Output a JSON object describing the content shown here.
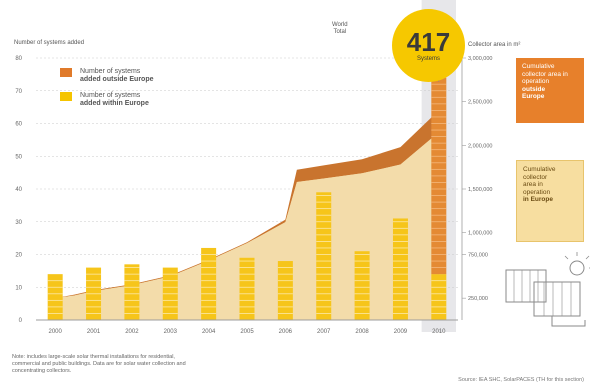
{
  "titles": {
    "left_axis": "Number of systems added",
    "right_axis": "Collector area in m²"
  },
  "legend": {
    "outside": {
      "line1": "Number of systems",
      "line2": "added outside Europe",
      "color": "#e07a2a"
    },
    "within": {
      "line1": "Number of systems",
      "line2": "added within Europe",
      "color": "#f5c400"
    }
  },
  "callouts": {
    "outside": {
      "line1": "Cumulative",
      "line2": "collector area in",
      "line3": "operation",
      "bold": "outside",
      "last": "Europe"
    },
    "europe": {
      "line1": "Cumulative",
      "line2": "collector",
      "line3": "area in",
      "line4": "operation",
      "bold": "in Europe"
    }
  },
  "world_total": {
    "line1": "World",
    "line2": "Total",
    "value": "417",
    "unit": "Systems"
  },
  "note": {
    "line1": "Note: includes large-scale solar thermal installations for residential,",
    "line2": "commercial and public buildings. Data are for solar water collection and",
    "line3": "concentrating collectors."
  },
  "source": "Source: IEA SHC, SolarPACES (TH for this section)",
  "colors": {
    "outside_bar": "#e48a34",
    "within_bar": "#f6c51a",
    "stripe": "#fde9a6",
    "area_europe": "#f3dcaa",
    "area_outside": "#c9742e",
    "highlight": "#e7e7ea",
    "axis": "#9c9c9c",
    "dash": "#c9c9c9"
  },
  "chart_data": {
    "type": "bar",
    "categories": [
      "2000",
      "2001",
      "2002",
      "2003",
      "2004",
      "2005",
      "2006",
      "2007",
      "2008",
      "2009",
      "2010"
    ],
    "y_ticks": [
      "0",
      "10",
      "20",
      "30",
      "40",
      "50",
      "60",
      "70",
      "80"
    ],
    "ylim": [
      0,
      80
    ],
    "y2_ticks": [
      "250,000",
      "750,000",
      "1,000,000",
      "1,500,000",
      "2,000,000",
      "2,500,000",
      "3,000,000"
    ],
    "y2lim": [
      0,
      3000000
    ],
    "series": [
      {
        "name": "Number of systems added outside Europe",
        "values": [
          0,
          0,
          0,
          0,
          0,
          0,
          0,
          0,
          0,
          0,
          60
        ]
      },
      {
        "name": "Number of systems added within Europe",
        "values": [
          14,
          16,
          17,
          16,
          22,
          19,
          18,
          39,
          21,
          31,
          14
        ]
      }
    ],
    "area_series": [
      {
        "name": "Cumulative collector area in operation in Europe",
        "x": [
          2000,
          2000.5,
          2001,
          2002,
          2003,
          2004,
          2005,
          2006,
          2006.3,
          2007,
          2008,
          2009,
          2010
        ],
        "y": [
          250000,
          280000,
          330000,
          400000,
          500000,
          680000,
          880000,
          1120000,
          1580000,
          1620000,
          1680000,
          1780000,
          2150000
        ]
      },
      {
        "name": "Cumulative collector area in operation outside Europe",
        "x": [
          2000,
          2000.5,
          2001,
          2002,
          2003,
          2004,
          2005,
          2006,
          2006.3,
          2007,
          2008,
          2009,
          2010
        ],
        "y": [
          250000,
          290000,
          340000,
          410000,
          510000,
          690000,
          890000,
          1150000,
          1720000,
          1770000,
          1840000,
          1980000,
          2400000
        ]
      }
    ],
    "highlight_category": "2010"
  }
}
